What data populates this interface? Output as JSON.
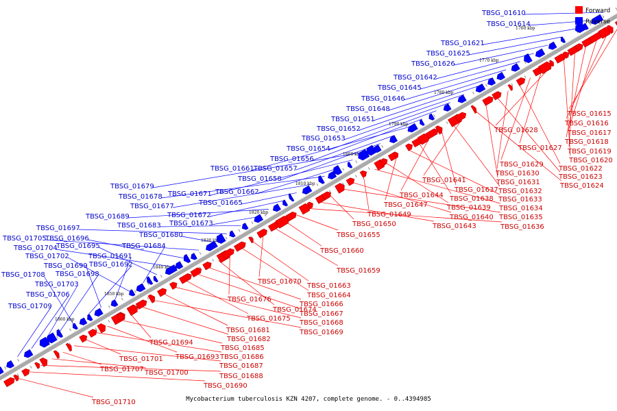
{
  "caption": "Mycobacterium tuberculosis KZN 4207, complete genome. - 0..4394985",
  "legend": {
    "forward_label": "Forward",
    "reverse_label": "Reverse",
    "forward_color": "#ff0000",
    "reverse_color": "#0000ff"
  },
  "colors": {
    "forward_line": "#ff0000",
    "reverse_line": "#0000ff",
    "forward_text": "#cc0000",
    "reverse_text": "#0000cc",
    "axis": "#999999"
  },
  "ticks": [
    "1760 kbp",
    "1770 kbp",
    "1780 kbp",
    "1790 kbp",
    "1800 kbp",
    "1810 kbp",
    "1820 kbp",
    "1830 kbp",
    "1840 kbp",
    "1850 kbp",
    "1860 kbp"
  ],
  "reverse_genes": [
    "TBSG_01610",
    "TBSG_01614",
    "TBSG_01621",
    "TBSG_01625",
    "TBSG_01626",
    "TBSG_01642",
    "TBSG_01645",
    "TBSG_01646",
    "TBSG_01648",
    "TBSG_01651",
    "TBSG_01652",
    "TBSG_01653",
    "TBSG_01654",
    "TBSG_01656",
    "TBSG_01661",
    "TBSG_01657",
    "TBSG_01658",
    "TBSG_01679",
    "TBSG_01671",
    "TBSG_01662",
    "TBSG_01678",
    "TBSG_01677",
    "TBSG_01665",
    "TBSG_01672",
    "TBSG_01689",
    "TBSG_01673",
    "TBSG_01683",
    "TBSG_01697",
    "TBSG_01680",
    "TBSG_01705",
    "TBSG_01696",
    "TBSG_01704",
    "TBSG_01695",
    "TBSG_01684",
    "TBSG_01702",
    "TBSG_01691",
    "TBSG_01699",
    "TBSG_01692",
    "TBSG_01708",
    "TBSG_01698",
    "TBSG_01703",
    "TBSG_01706",
    "TBSG_01709"
  ],
  "forward_genes": [
    "TBSG_01615",
    "TBSG_01616",
    "TBSG_01617",
    "TBSG_01618",
    "TBSG_01619",
    "TBSG_01620",
    "TBSG_01628",
    "TBSG_01627",
    "TBSG_01629",
    "TBSG_01622",
    "TBSG_01630",
    "TBSG_01623",
    "TBSG_01631",
    "TBSG_01624",
    "TBSG_01641",
    "TBSG_01632",
    "TBSG_01637",
    "TBSG_01644",
    "TBSG_01638",
    "TBSG_01633",
    "TBSG_01647",
    "TBSG_01639",
    "TBSG_01634",
    "TBSG_01649",
    "TBSG_01640",
    "TBSG_01635",
    "TBSG_01650",
    "TBSG_01643",
    "TBSG_01636",
    "TBSG_01655",
    "TBSG_01660",
    "TBSG_01659",
    "TBSG_01670",
    "TBSG_01663",
    "TBSG_01664",
    "TBSG_01676",
    "TBSG_01674",
    "TBSG_01666",
    "TBSG_01667",
    "TBSG_01675",
    "TBSG_01668",
    "TBSG_01681",
    "TBSG_01669",
    "TBSG_01682",
    "TBSG_01694",
    "TBSG_01685",
    "TBSG_01693",
    "TBSG_01686",
    "TBSG_01701",
    "TBSG_01687",
    "TBSG_01707",
    "TBSG_01700",
    "TBSG_01688",
    "TBSG_01690",
    "TBSG_01710"
  ]
}
